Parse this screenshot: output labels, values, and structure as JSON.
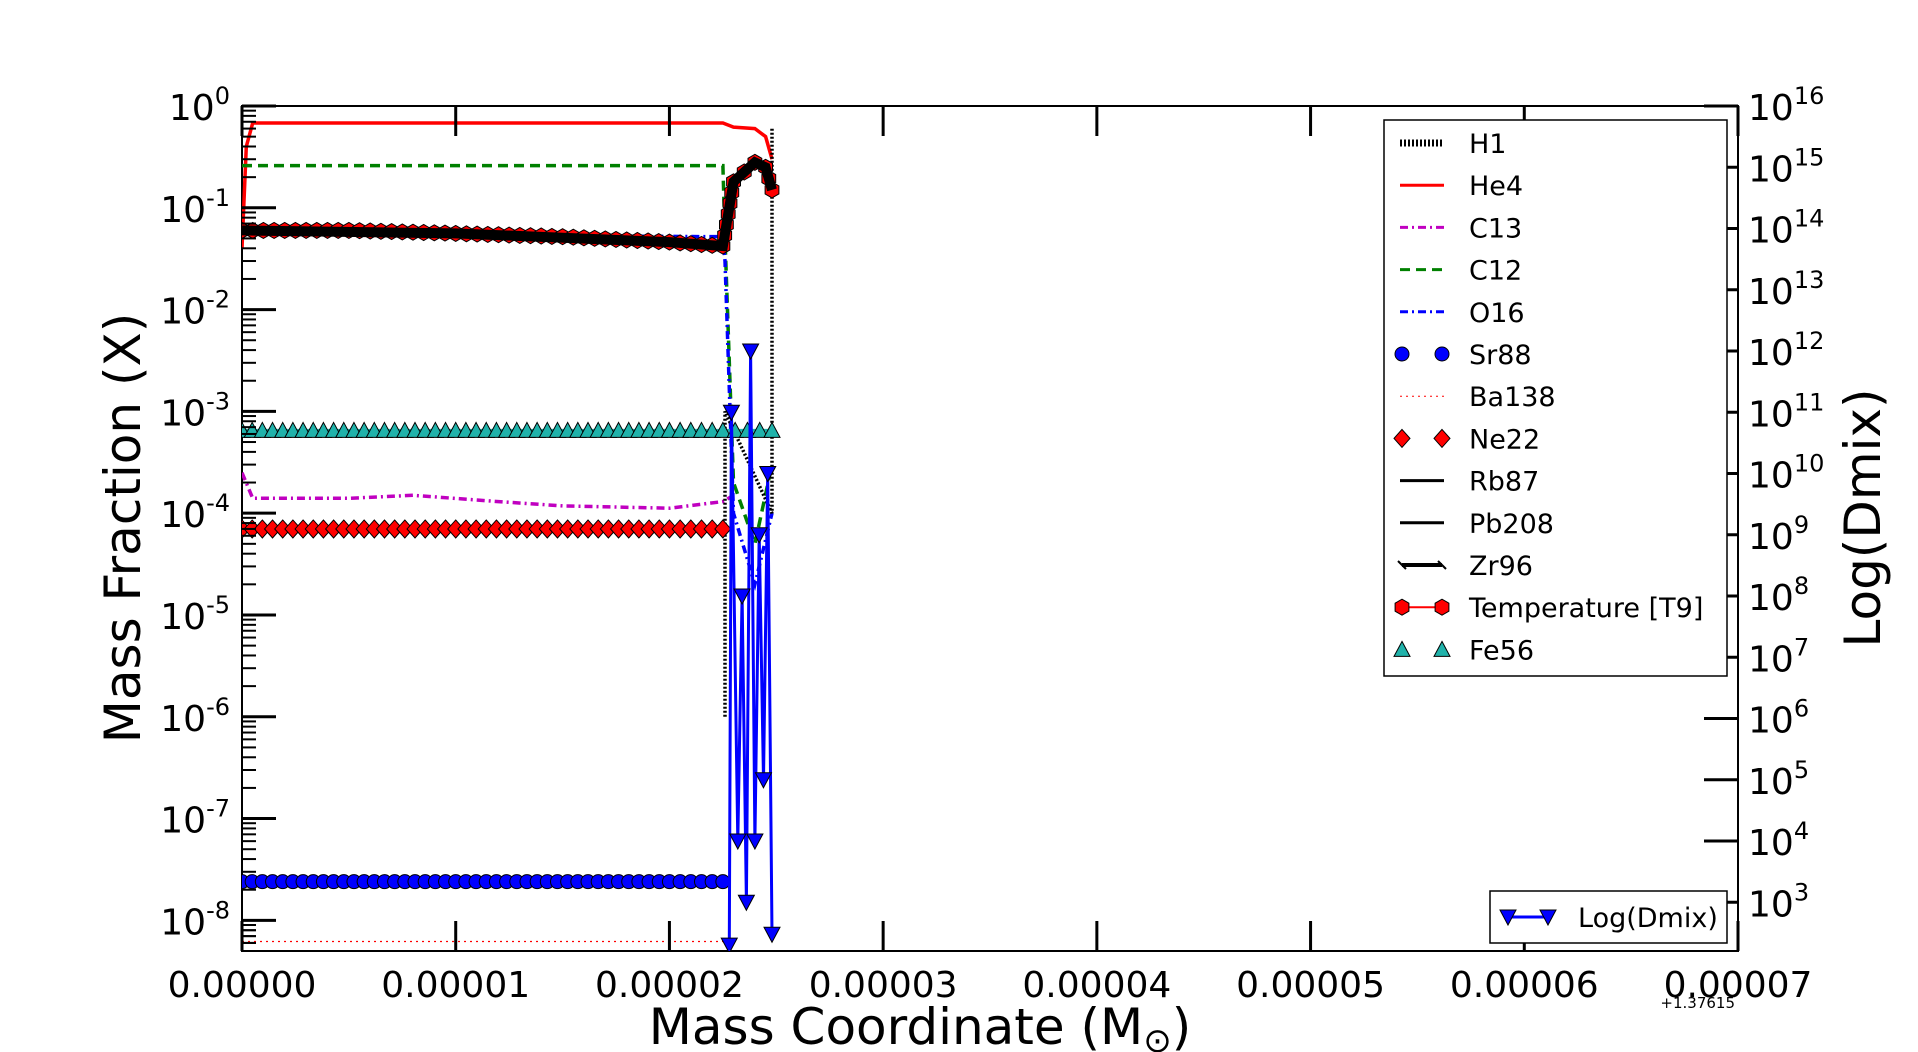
{
  "chart_data": {
    "type": "line",
    "x_axis": {
      "label": "Mass Coordinate (M",
      "label_symbol": "⊙",
      "label_close": ")",
      "range": [
        0.0,
        7e-05
      ],
      "ticks": [
        "0.00000",
        "0.00001",
        "0.00002",
        "0.00003",
        "0.00004",
        "0.00005",
        "0.00006",
        "0.00007"
      ],
      "offset_text": "+1.37615"
    },
    "y_axis_left": {
      "label": "Mass Fraction (X)",
      "scale": "log",
      "range": [
        5e-09,
        1.0
      ],
      "tick_exponents": [
        "0",
        "-1",
        "-2",
        "-3",
        "-4",
        "-5",
        "-6",
        "-7",
        "-8"
      ]
    },
    "y_axis_right": {
      "label": "Log(Dmix)",
      "scale": "log",
      "range": [
        160,
        1e+16
      ],
      "tick_exponents": [
        "16",
        "15",
        "14",
        "13",
        "12",
        "11",
        "10",
        "9",
        "8",
        "7",
        "6",
        "5",
        "4",
        "3"
      ]
    },
    "legend": {
      "placement": "upper right",
      "entries": [
        "H1",
        "He4",
        "C13",
        "C12",
        "O16",
        "Sr88",
        "Ba138",
        "Ne22",
        "Rb87",
        "Pb208",
        "Zr96",
        "Temperature [T9]",
        "Fe56"
      ]
    },
    "legend2": {
      "placement": "lower right",
      "entries": [
        "Log(Dmix)"
      ]
    },
    "series": [
      {
        "name": "He4",
        "color": "#ff0000",
        "style": "solid",
        "x": [
          0.0,
          2e-07,
          5e-07,
          2.25e-05,
          2.3e-05,
          2.4e-05,
          2.45e-05,
          2.48e-05
        ],
        "y": [
          0.04,
          0.4,
          0.68,
          0.68,
          0.62,
          0.6,
          0.5,
          0.3
        ]
      },
      {
        "name": "C12",
        "color": "#008000",
        "style": "dashed",
        "x": [
          0.0,
          5e-07,
          2.25e-05,
          2.26e-05,
          2.3e-05,
          2.4e-05,
          2.48e-05
        ],
        "y": [
          0.26,
          0.26,
          0.26,
          0.05,
          0.0002,
          5e-05,
          0.0003
        ]
      },
      {
        "name": "C13",
        "color": "#c000c0",
        "style": "dashdot",
        "x": [
          0.0,
          5e-07,
          5e-06,
          8e-06,
          1.2e-05,
          1.5e-05,
          2e-05,
          2.25e-05,
          2.3e-05
        ],
        "y": [
          0.00025,
          0.00014,
          0.00014,
          0.00015,
          0.00013,
          0.000118,
          0.000112,
          0.00013,
          0.00015
        ]
      },
      {
        "name": "O16",
        "color": "#0000ff",
        "style": "dashdot",
        "x": [
          0.0,
          5e-07,
          2.25e-05,
          2.26e-05,
          2.3e-05,
          2.4e-05,
          2.48e-05
        ],
        "y": [
          0.06,
          0.055,
          0.052,
          0.03,
          0.0001,
          2e-05,
          0.0001
        ]
      },
      {
        "name": "H1",
        "color": "#000000",
        "style": "dotted",
        "x": [
          2.26e-05,
          2.26e-05,
          2.48e-05,
          2.48e-05
        ],
        "y": [
          1e-06,
          0.001,
          0.0001,
          0.6
        ]
      },
      {
        "name": "Ba138",
        "color": "#ff0000",
        "style": "dotted-thin",
        "x": [
          0.0,
          2.25e-05,
          2.3e-05
        ],
        "y": [
          6.2e-09,
          6.2e-09,
          6.2e-09
        ]
      },
      {
        "name": "Temperature [T9]",
        "color": "#ff0000",
        "marker": "hexagon",
        "x": [
          0.0,
          5e-06,
          1e-05,
          1.5e-05,
          2e-05,
          2.25e-05,
          2.3e-05,
          2.4e-05,
          2.45e-05,
          2.48e-05
        ],
        "y": [
          0.06,
          0.06,
          0.056,
          0.052,
          0.046,
          0.042,
          0.18,
          0.28,
          0.25,
          0.15
        ]
      },
      {
        "name": "Zr96",
        "color": "#000000",
        "marker": "x",
        "x": [
          0.0,
          1e-05,
          2e-05,
          2.25e-05,
          2.3e-05,
          2.4e-05,
          2.45e-05,
          2.48e-05
        ],
        "y": [
          0.06,
          0.056,
          0.046,
          0.042,
          0.18,
          0.28,
          0.25,
          0.15
        ]
      },
      {
        "name": "Fe56",
        "color": "#20b2aa",
        "marker": "triangle-up",
        "x": [
          0.0,
          1e-05,
          2e-05,
          2.25e-05,
          2.48e-05
        ],
        "y": [
          0.00065,
          0.00065,
          0.00065,
          0.00065,
          0.00065
        ]
      },
      {
        "name": "Ne22",
        "color": "#ff0000",
        "marker": "diamond",
        "x": [
          0.0,
          1e-05,
          2e-05,
          2.25e-05
        ],
        "y": [
          7e-05,
          7e-05,
          7e-05,
          7e-05
        ]
      },
      {
        "name": "Sr88",
        "color": "#0000ff",
        "marker": "circle",
        "x": [
          0.0,
          1e-05,
          2e-05,
          2.25e-05
        ],
        "y": [
          2.4e-08,
          2.4e-08,
          2.4e-08,
          2.4e-08
        ]
      },
      {
        "name": "Log(Dmix)",
        "color": "#0000ff",
        "marker": "triangle-down",
        "axis": "right",
        "x": [
          2.28e-05,
          2.29e-05,
          2.32e-05,
          2.34e-05,
          2.36e-05,
          2.38e-05,
          2.4e-05,
          2.42e-05,
          2.44e-05,
          2.46e-05,
          2.48e-05
        ],
        "y": [
          200,
          100000000000.0,
          10000.0,
          100000000.0,
          1000.0,
          1000000000000.0,
          10000.0,
          1000000000.0,
          100000.0,
          10000000000.0,
          300
        ]
      }
    ]
  }
}
